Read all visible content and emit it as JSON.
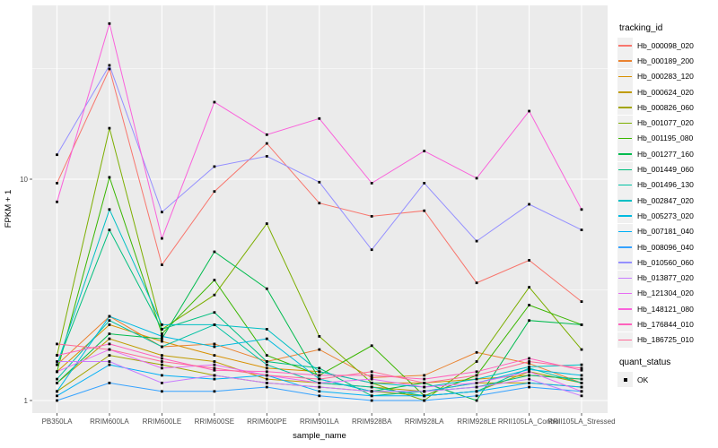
{
  "chart_data": {
    "type": "line",
    "title": "",
    "xlabel": "sample_name",
    "ylabel": "FPKM + 1",
    "y_scale": "log10",
    "y_tick_labels": [
      "1",
      "10"
    ],
    "y_ticks": [
      1,
      10
    ],
    "y_minor_gridlines": [
      3.162,
      31.62
    ],
    "ylim": [
      1,
      60
    ],
    "grid": "on",
    "legend_position": "right",
    "legend_title": "tracking_id",
    "quant_legend_title": "quant_status",
    "quant_status_value": "OK",
    "point_marker": "small-black-square",
    "panel_background": "#EBEBEB",
    "gridline_color": "#FFFFFF",
    "tick_label_color": "#4D4D4D",
    "axis_title_color": "#000000",
    "categories": [
      "PB350LA",
      "RRIM600LA",
      "RRIM600LE",
      "RRIM600SE",
      "RRIM600PE",
      "RRIM901LA",
      "RRIM928BA",
      "RRIM928LA",
      "RRIM928LE",
      "RRII105LA_Control",
      "RRII105LA_Stressed"
    ],
    "series": [
      {
        "name": "Hb_000098_020",
        "color": "#F8766D",
        "values": [
          9.6,
          31.5,
          4.1,
          8.8,
          14.5,
          7.8,
          6.8,
          7.2,
          3.4,
          4.3,
          2.8
        ]
      },
      {
        "name": "Hb_000189_200",
        "color": "#EA8331",
        "values": [
          1.45,
          2.4,
          1.75,
          1.8,
          1.5,
          1.7,
          1.27,
          1.3,
          1.65,
          1.47,
          1.2
        ]
      },
      {
        "name": "Hb_000283_120",
        "color": "#D89000",
        "values": [
          1.35,
          2.2,
          1.85,
          1.6,
          1.4,
          1.35,
          1.2,
          1.2,
          1.25,
          1.3,
          1.25
        ]
      },
      {
        "name": "Hb_000624_020",
        "color": "#C09B00",
        "values": [
          1.2,
          1.9,
          1.6,
          1.5,
          1.25,
          1.2,
          1.15,
          1.1,
          1.2,
          1.2,
          1.15
        ]
      },
      {
        "name": "Hb_000826_060",
        "color": "#A3A500",
        "values": [
          1.1,
          1.6,
          1.45,
          1.3,
          1.2,
          1.15,
          1.1,
          1.05,
          1.1,
          1.35,
          1.2
        ]
      },
      {
        "name": "Hb_001077_020",
        "color": "#7CAE00",
        "values": [
          1.6,
          17.0,
          2.1,
          3.0,
          6.3,
          1.95,
          1.2,
          1.0,
          1.5,
          3.25,
          1.7
        ]
      },
      {
        "name": "Hb_001195_080",
        "color": "#39B600",
        "values": [
          1.35,
          10.2,
          2.0,
          3.5,
          1.6,
          1.3,
          1.77,
          1.05,
          1.3,
          2.7,
          2.2
        ]
      },
      {
        "name": "Hb_001277_160",
        "color": "#00BB4E",
        "values": [
          1.2,
          2.0,
          1.9,
          4.7,
          3.2,
          1.25,
          1.1,
          1.2,
          1.0,
          2.3,
          2.2
        ]
      },
      {
        "name": "Hb_001449_060",
        "color": "#00BF7D",
        "values": [
          1.45,
          5.9,
          2.1,
          2.5,
          1.5,
          1.4,
          1.05,
          1.1,
          1.15,
          1.3,
          1.25
        ]
      },
      {
        "name": "Hb_001496_130",
        "color": "#00C1A3",
        "values": [
          1.25,
          2.3,
          1.75,
          2.2,
          1.45,
          1.2,
          1.15,
          1.05,
          1.1,
          1.4,
          1.2
        ]
      },
      {
        "name": "Hb_002847_020",
        "color": "#00BFC4",
        "values": [
          1.45,
          7.3,
          2.2,
          2.2,
          2.1,
          1.35,
          1.2,
          1.15,
          1.25,
          1.42,
          1.45
        ]
      },
      {
        "name": "Hb_005273_020",
        "color": "#00BAE0",
        "values": [
          1.1,
          2.4,
          1.95,
          1.75,
          1.9,
          1.25,
          1.1,
          1.1,
          1.2,
          1.38,
          1.3
        ]
      },
      {
        "name": "Hb_007181_040",
        "color": "#00B0F6",
        "values": [
          1.05,
          1.45,
          1.3,
          1.25,
          1.3,
          1.1,
          1.05,
          1.05,
          1.1,
          1.2,
          1.15
        ]
      },
      {
        "name": "Hb_008096_040",
        "color": "#35A2FF",
        "values": [
          1.0,
          1.2,
          1.1,
          1.1,
          1.15,
          1.05,
          1.0,
          1.0,
          1.05,
          1.15,
          1.1
        ]
      },
      {
        "name": "Hb_010560_060",
        "color": "#9590FF",
        "values": [
          12.9,
          32.7,
          7.1,
          11.4,
          12.7,
          9.7,
          4.8,
          9.6,
          5.25,
          7.7,
          5.9
        ]
      },
      {
        "name": "Hb_013877_020",
        "color": "#C77CFF",
        "values": [
          1.5,
          1.5,
          1.2,
          1.3,
          1.2,
          1.15,
          1.1,
          1.1,
          1.15,
          1.25,
          1.05
        ]
      },
      {
        "name": "Hb_121304_020",
        "color": "#E76BF3",
        "values": [
          1.35,
          1.7,
          1.4,
          1.45,
          1.3,
          1.2,
          1.25,
          1.15,
          1.2,
          1.35,
          1.1
        ]
      },
      {
        "name": "Hb_148121_080",
        "color": "#FA62DB",
        "values": [
          7.9,
          50.5,
          5.4,
          22.3,
          15.9,
          18.8,
          9.6,
          13.4,
          10.1,
          20.3,
          7.3
        ]
      },
      {
        "name": "Hb_176844_010",
        "color": "#FF62BC",
        "values": [
          1.6,
          1.8,
          1.55,
          1.37,
          1.35,
          1.3,
          1.3,
          1.25,
          1.35,
          1.55,
          1.37
        ]
      },
      {
        "name": "Hb_186725_010",
        "color": "#FF6A98",
        "values": [
          1.8,
          1.7,
          1.5,
          1.4,
          1.3,
          1.25,
          1.35,
          1.2,
          1.3,
          1.5,
          1.4
        ]
      }
    ]
  }
}
